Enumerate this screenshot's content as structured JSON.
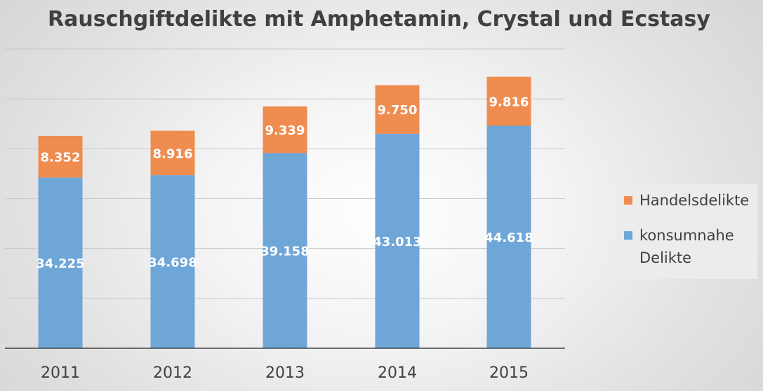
{
  "chart_data": {
    "type": "bar",
    "stacked": true,
    "title": "Rauschgiftdelikte mit Amphetamin, Crystal und Ecstasy",
    "categories": [
      "2011",
      "2012",
      "2013",
      "2014",
      "2015"
    ],
    "series": [
      {
        "name": "konsumnahe Delikte",
        "color": "#6fa6d8",
        "values": [
          34225,
          34698,
          39158,
          43013,
          44618
        ],
        "labels": [
          "34.225",
          "34.698",
          "39.158",
          "43.013",
          "44.618"
        ]
      },
      {
        "name": "Handelsdelikte",
        "color": "#ef8c4f",
        "values": [
          8352,
          8916,
          9339,
          9750,
          9816
        ],
        "labels": [
          "8.352",
          "8.916",
          "9.339",
          "9.750",
          "9.816"
        ]
      }
    ],
    "ylim": [
      0,
      60000
    ],
    "y_gridline_step": 10000,
    "y_tick_labels_shown": false,
    "grid": true,
    "legend_position": "right",
    "legend_order": [
      "Handelsdelikte",
      "konsumnahe Delikte"
    ]
  }
}
